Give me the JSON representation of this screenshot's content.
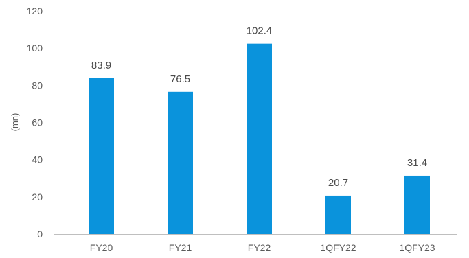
{
  "chart_data": {
    "type": "bar",
    "title": "",
    "xlabel": "",
    "ylabel": "(mn)",
    "categories": [
      "FY20",
      "FY21",
      "FY22",
      "1QFY22",
      "1QFY23"
    ],
    "values": [
      83.9,
      76.5,
      102.4,
      20.7,
      31.4
    ],
    "value_labels": [
      "83.9",
      "76.5",
      "102.4",
      "20.7",
      "31.4"
    ],
    "ylim": [
      0,
      120
    ],
    "yticks": [
      0,
      20,
      40,
      60,
      80,
      100,
      120
    ],
    "grid": false,
    "legend": "none",
    "bar_color": "#0a93dc",
    "axis_color": "#bfbfbf"
  }
}
